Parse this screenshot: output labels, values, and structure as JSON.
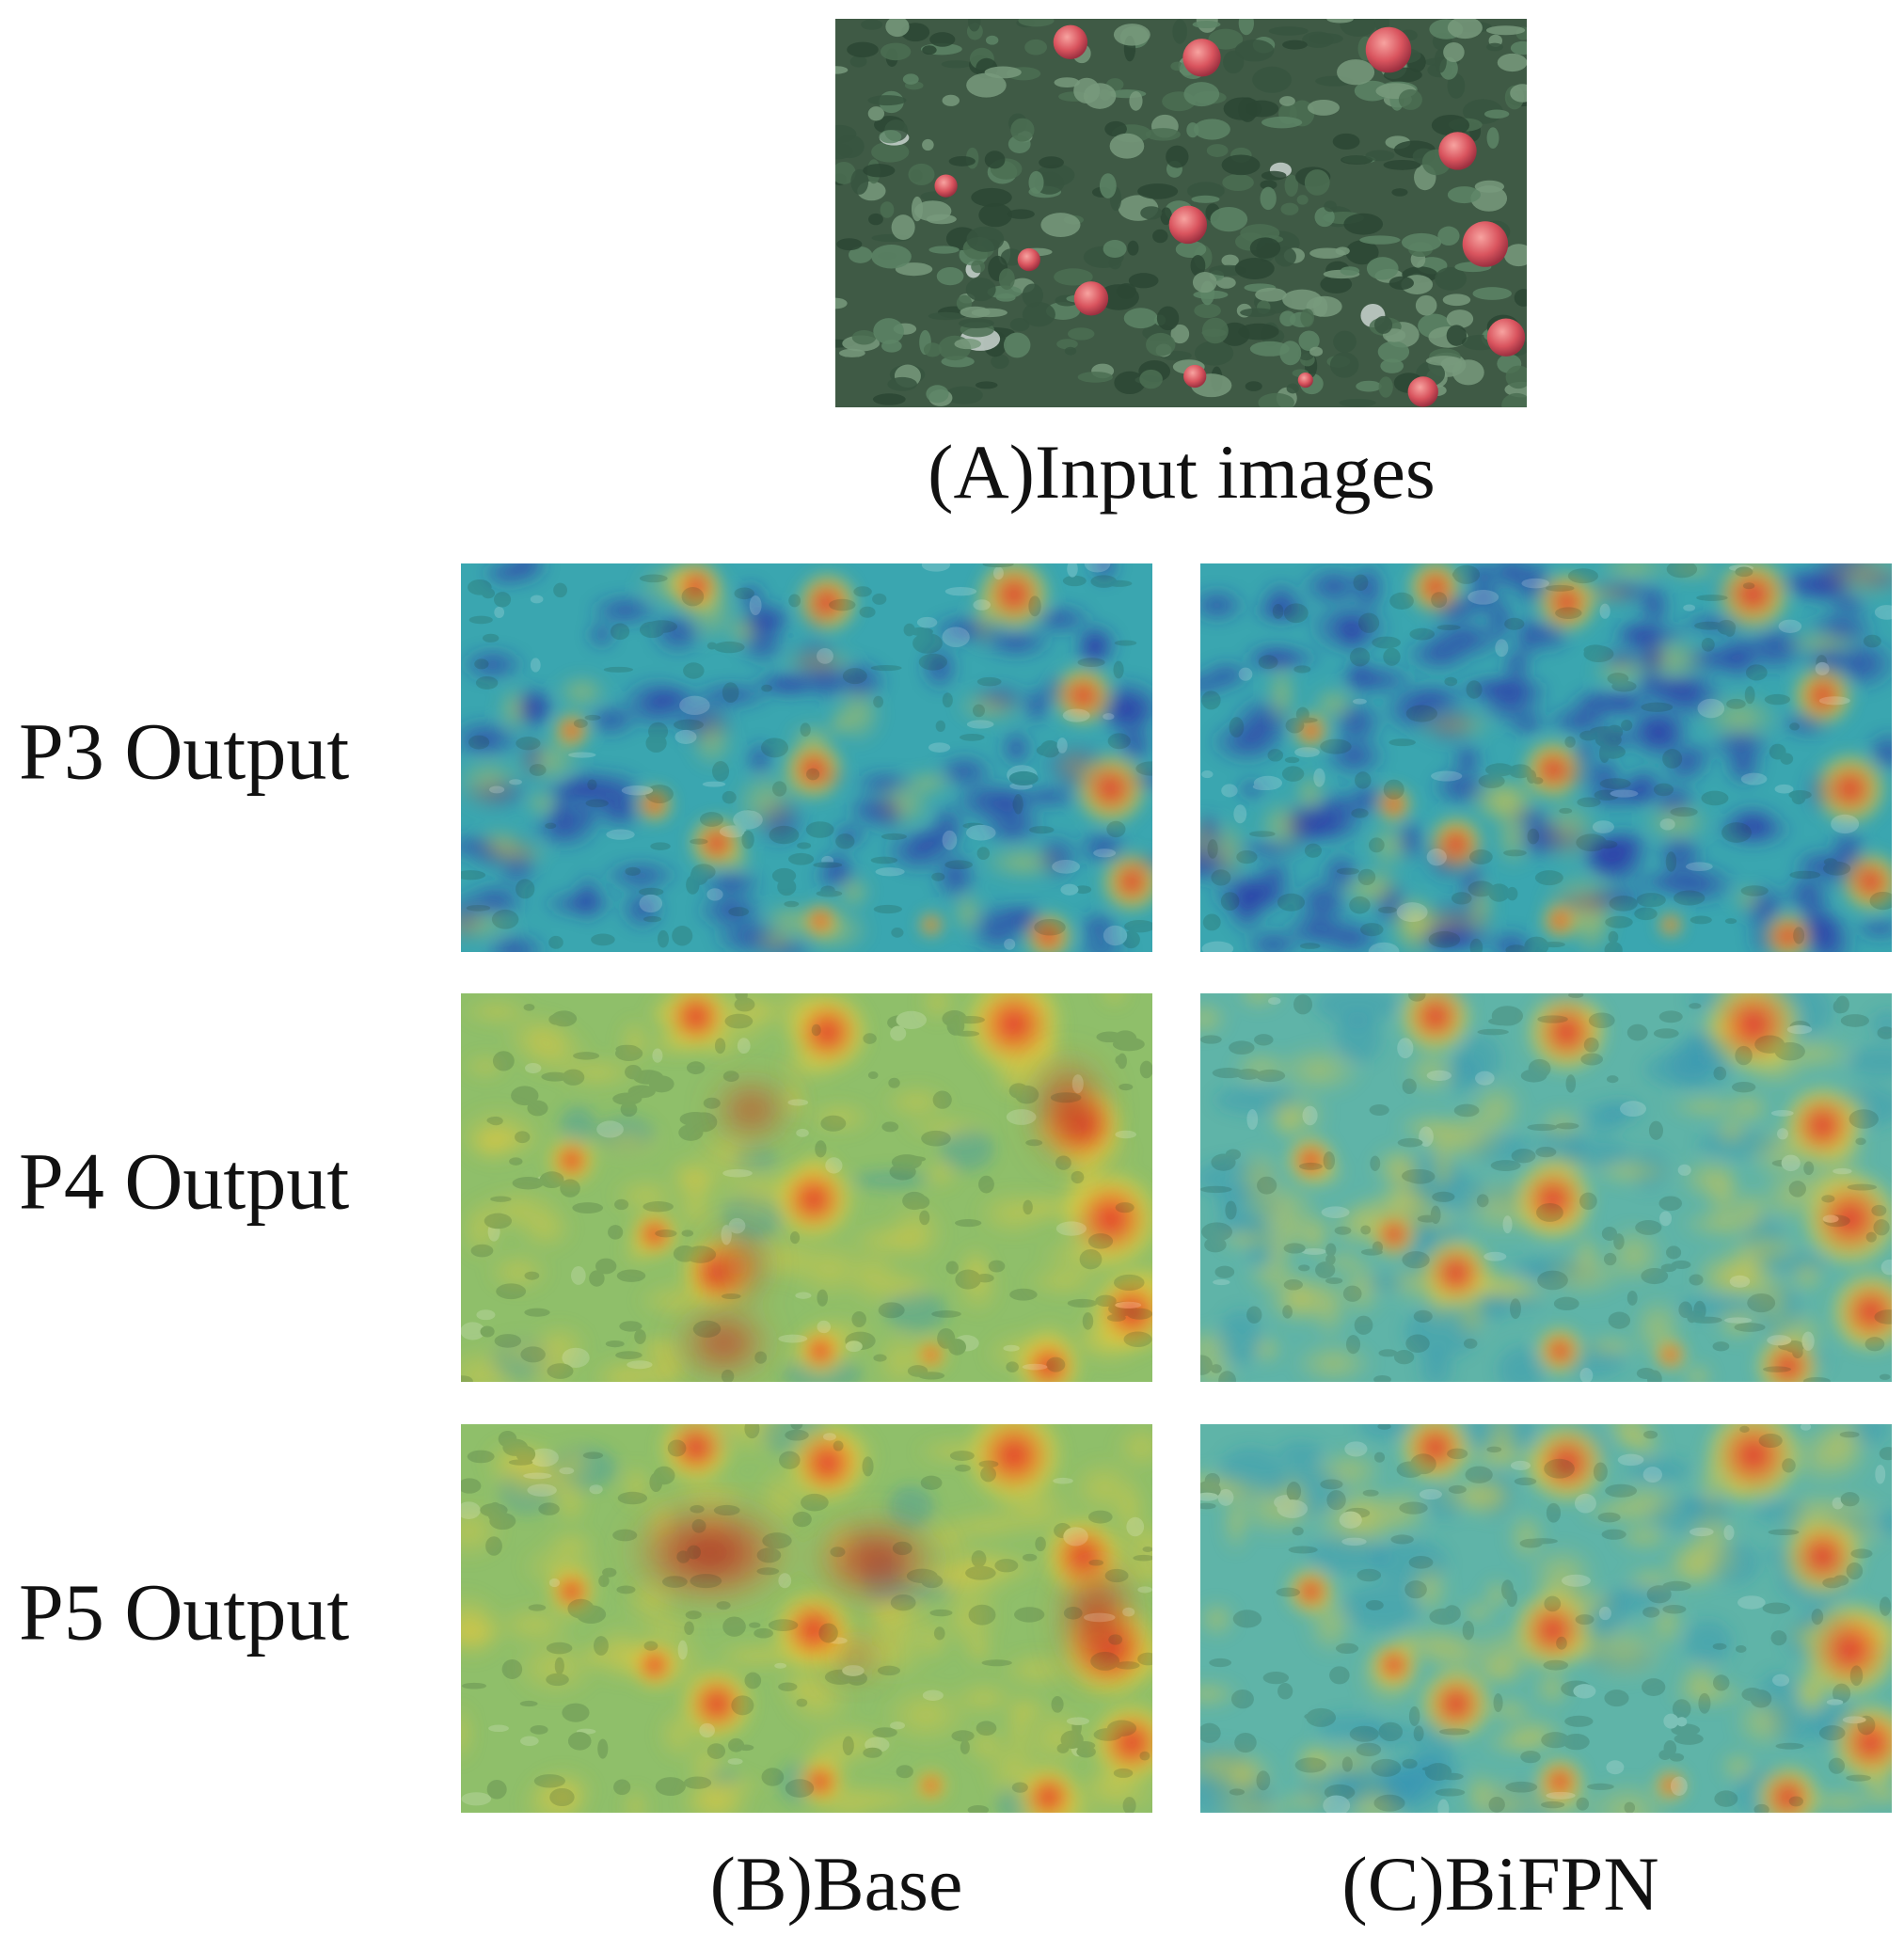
{
  "input": {
    "caption": "(A)Input images"
  },
  "rows": [
    {
      "label": "P3 Output"
    },
    {
      "label": "P4 Output"
    },
    {
      "label": "P5 Output"
    }
  ],
  "columns": [
    {
      "label": "(B)Base"
    },
    {
      "label": "(C)BiFPN"
    }
  ]
}
